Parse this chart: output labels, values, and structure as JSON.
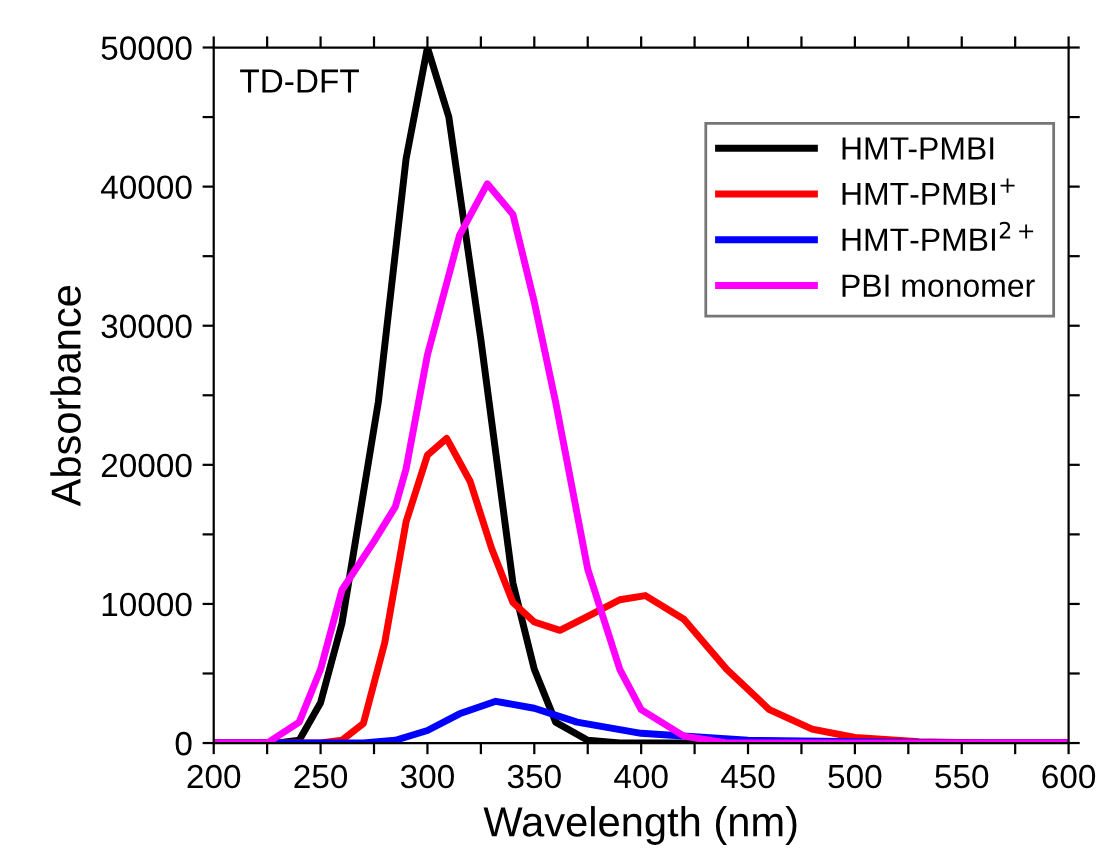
{
  "chart_data": {
    "type": "line",
    "xlabel": "Wavelength (nm)",
    "ylabel": "Absorbance",
    "annotations": [
      "TD-DFT"
    ],
    "xlim": [
      200,
      600
    ],
    "ylim": [
      0,
      50000
    ],
    "xticks": [
      200,
      {
        "value": 225,
        "label": null
      },
      250,
      {
        "value": 275,
        "label": null
      },
      300,
      {
        "value": 325,
        "label": null
      },
      350,
      {
        "value": 375,
        "label": null
      },
      400,
      {
        "value": 425,
        "label": null
      },
      450,
      {
        "value": 475,
        "label": null
      },
      500,
      {
        "value": 525,
        "label": null
      },
      550,
      {
        "value": 575,
        "label": null
      },
      600
    ],
    "yticks": [
      0,
      {
        "value": 5000,
        "label": null
      },
      10000,
      {
        "value": 15000,
        "label": null
      },
      20000,
      {
        "value": 25000,
        "label": null
      },
      30000,
      {
        "value": 35000,
        "label": null
      },
      40000,
      {
        "value": 45000,
        "label": null
      },
      50000
    ],
    "grid": false,
    "legend": "top right",
    "marker": "none",
    "line_style": "solid",
    "series": [
      {
        "name": "HMT-PMBI",
        "color": "#000000",
        "x": [
          200,
          230,
          240,
          250,
          260,
          277,
          290,
          300,
          310,
          325,
          340,
          350,
          360,
          375,
          390,
          600
        ],
        "values": [
          0,
          0,
          200,
          2900,
          8600,
          24500,
          42000,
          50000,
          45000,
          29000,
          11500,
          5300,
          1500,
          200,
          0,
          0
        ]
      },
      {
        "name": "HMT-PMBI$^{+}$",
        "color": "#ff0000",
        "x": [
          200,
          250,
          260,
          270,
          280,
          290,
          300,
          309,
          320,
          330,
          340,
          350,
          362,
          375,
          390,
          402,
          420,
          440,
          460,
          480,
          500,
          530,
          560,
          600
        ],
        "values": [
          0,
          0,
          200,
          1400,
          7200,
          15900,
          20700,
          21900,
          18800,
          14000,
          10100,
          8700,
          8100,
          9100,
          10300,
          10600,
          8900,
          5300,
          2400,
          1000,
          400,
          100,
          0,
          0
        ]
      },
      {
        "name": "HMT-PMBI$^{2+}$",
        "color": "#0000ff",
        "x": [
          200,
          270,
          285,
          300,
          315,
          332,
          350,
          370,
          400,
          450,
          550,
          600
        ],
        "values": [
          0,
          0,
          200,
          900,
          2100,
          3000,
          2500,
          1500,
          700,
          200,
          0,
          0
        ]
      },
      {
        "name": "PBI monomer",
        "color": "#ff00ff",
        "x": [
          200,
          225,
          240,
          250,
          260,
          275,
          285,
          290,
          300,
          315,
          328,
          340,
          350,
          360,
          375,
          390,
          400,
          420,
          440,
          600
        ],
        "values": [
          0,
          0,
          1500,
          5300,
          11000,
          14500,
          17000,
          19700,
          27900,
          36500,
          40200,
          38000,
          31700,
          24500,
          12500,
          5300,
          2400,
          500,
          0,
          0
        ]
      }
    ]
  }
}
